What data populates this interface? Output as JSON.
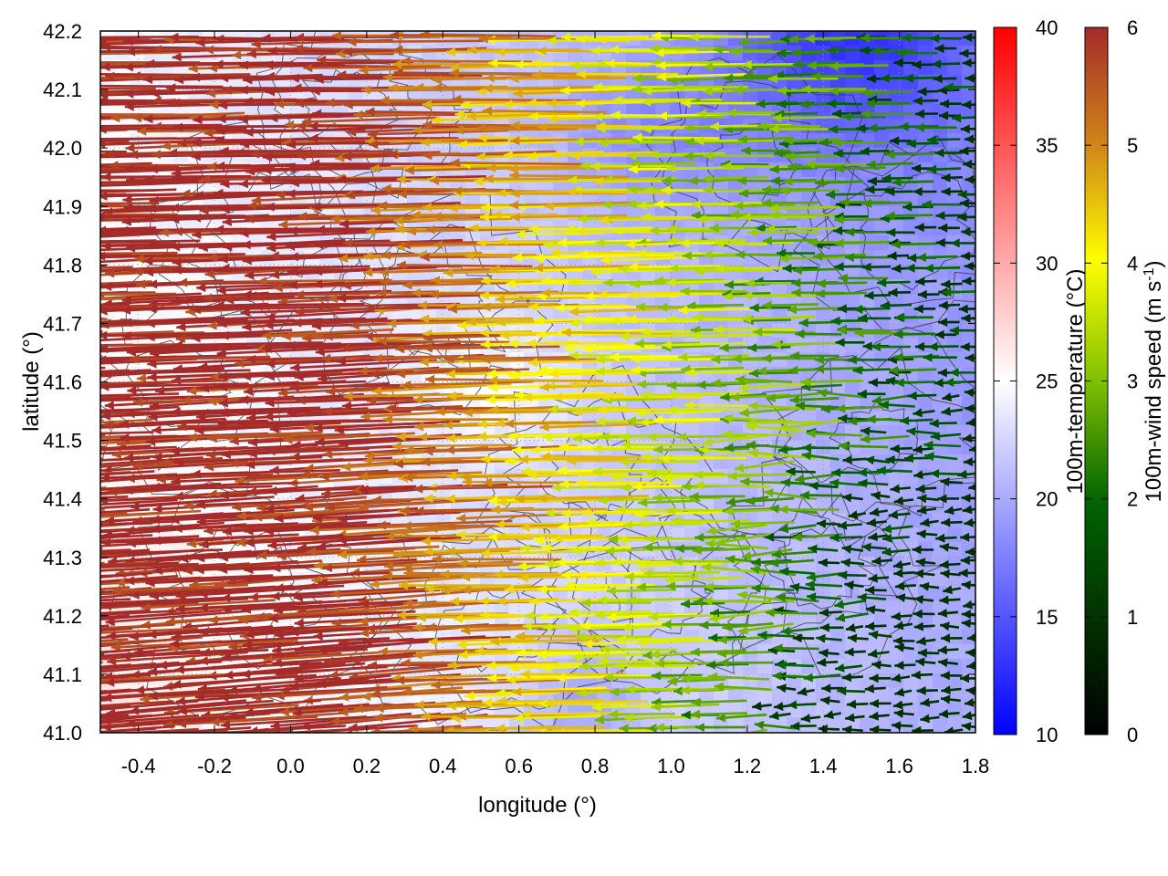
{
  "chart_data": {
    "type": "heatmap",
    "title": "",
    "xlabel": "longitude (°)",
    "ylabel": "latitude (°)",
    "xlim": [
      -0.5,
      1.8
    ],
    "ylim": [
      41.0,
      42.2
    ],
    "x_ticks": [
      "-0.4",
      "-0.2",
      "0.0",
      "0.2",
      "0.4",
      "0.6",
      "0.8",
      "1.0",
      "1.2",
      "1.4",
      "1.6",
      "1.8"
    ],
    "x_tick_values": [
      -0.4,
      -0.2,
      0.0,
      0.2,
      0.4,
      0.6,
      0.8,
      1.0,
      1.2,
      1.4,
      1.6,
      1.8
    ],
    "y_ticks": [
      "41.0",
      "41.1",
      "41.2",
      "41.3",
      "41.4",
      "41.5",
      "41.6",
      "41.7",
      "41.8",
      "41.9",
      "42.0",
      "42.1",
      "42.2"
    ],
    "y_tick_values": [
      41.0,
      41.1,
      41.2,
      41.3,
      41.4,
      41.5,
      41.6,
      41.7,
      41.8,
      41.9,
      42.0,
      42.1,
      42.2
    ],
    "grid": true,
    "temperature_colorbar": {
      "label": "100m-temperature (°C)",
      "range": [
        10,
        40
      ],
      "ticks": [
        "10",
        "15",
        "20",
        "25",
        "30",
        "35",
        "40"
      ],
      "tick_values": [
        10,
        15,
        20,
        25,
        30,
        35,
        40
      ],
      "colors": [
        "#0000ff",
        "#ffffff",
        "#ff0000"
      ]
    },
    "wind_colorbar": {
      "label_main": "100m-wind speed (m s",
      "label_sup": "-1",
      "label_end": ")",
      "range": [
        0,
        6
      ],
      "ticks": [
        "0",
        "1",
        "2",
        "3",
        "4",
        "5",
        "6"
      ],
      "tick_values": [
        0,
        1,
        2,
        3,
        4,
        5,
        6
      ],
      "colors": [
        "#000000",
        "#006400",
        "#80c000",
        "#ffff00",
        "#d08818",
        "#a52a2a"
      ]
    },
    "temperature_field_description": "warmer (~23-26 °C) over the west and centre, cooler (~12-20 °C) toward the north-east corner and eastern coast",
    "wind_field_description": "strong westward flow (~6 m/s) over the western half, weakening to 1-3 m/s toward the south-east"
  }
}
